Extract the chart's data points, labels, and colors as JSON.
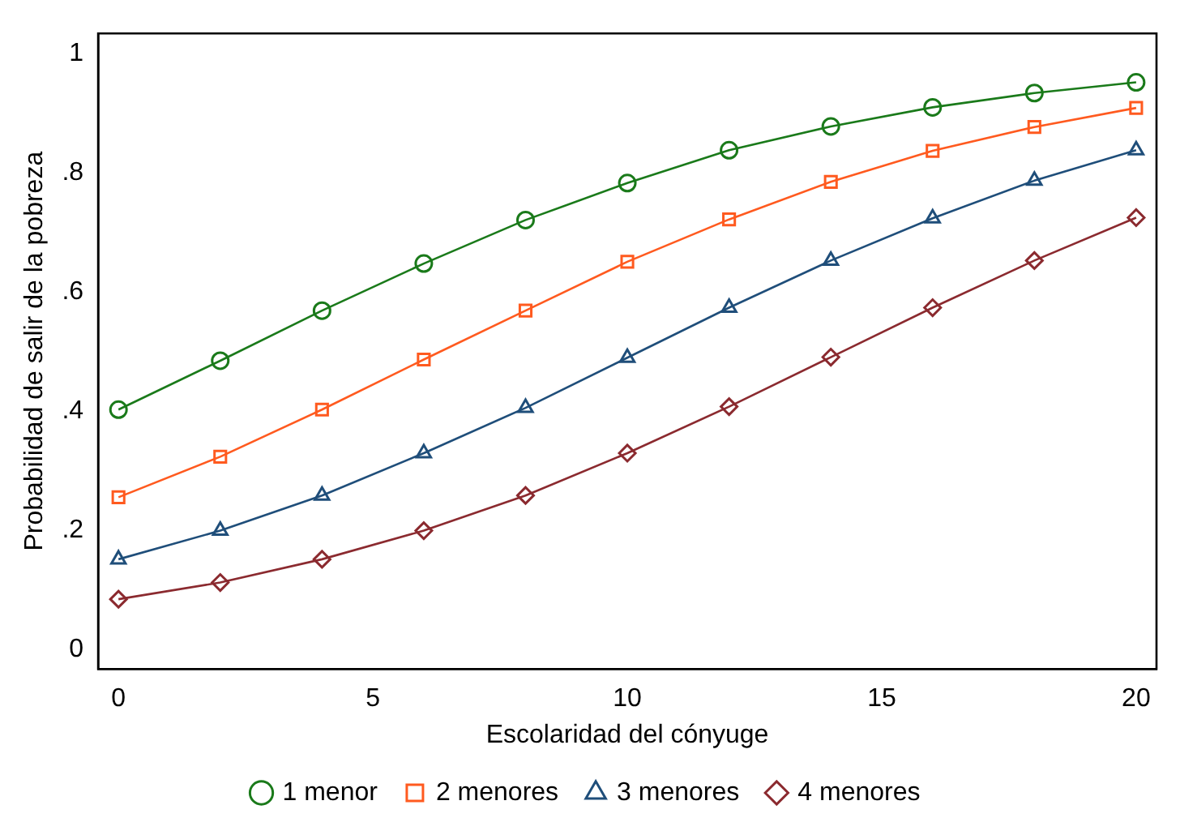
{
  "chart_data": {
    "type": "line",
    "xlabel": "Escolaridad del cónyuge",
    "ylabel": "Probabilidad de salir de la pobreza",
    "x": [
      0,
      2,
      4,
      6,
      8,
      10,
      12,
      14,
      16,
      18,
      20
    ],
    "series": [
      {
        "name": "1 menor",
        "color": "#1a7a1a",
        "marker": "circle",
        "values": [
          0.403,
          0.485,
          0.569,
          0.648,
          0.721,
          0.783,
          0.838,
          0.878,
          0.91,
          0.934,
          0.952
        ]
      },
      {
        "name": "2 menores",
        "color": "#ff5a1f",
        "marker": "square",
        "values": [
          0.256,
          0.324,
          0.403,
          0.487,
          0.569,
          0.651,
          0.722,
          0.785,
          0.837,
          0.877,
          0.909
        ]
      },
      {
        "name": "3 menores",
        "color": "#1f4e7a",
        "marker": "triangle",
        "values": [
          0.152,
          0.2,
          0.259,
          0.33,
          0.406,
          0.49,
          0.574,
          0.653,
          0.724,
          0.787,
          0.838
        ]
      },
      {
        "name": "4 menores",
        "color": "#8b2a2f",
        "marker": "diamond",
        "values": [
          0.085,
          0.113,
          0.152,
          0.2,
          0.259,
          0.33,
          0.408,
          0.491,
          0.574,
          0.653,
          0.725
        ]
      }
    ],
    "xlim": [
      -0.4,
      20.4
    ],
    "ylim": [
      -0.032,
      1.034
    ],
    "xticks": [
      0,
      5,
      10,
      15,
      20
    ],
    "yticks": [
      0,
      {
        "value": 0.2,
        "label": ".2"
      },
      {
        "value": 0.4,
        "label": ".4"
      },
      {
        "value": 0.6,
        "label": ".6"
      },
      {
        "value": 0.8,
        "label": ".8"
      },
      1
    ],
    "grid": false,
    "legend": "bottom",
    "line_style": "solid"
  }
}
